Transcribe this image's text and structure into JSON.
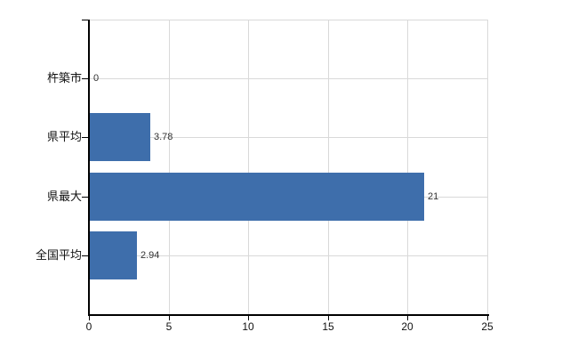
{
  "chart_data": {
    "type": "bar",
    "orientation": "horizontal",
    "title": "",
    "xlabel": "",
    "ylabel": "",
    "categories": [
      "杵築市",
      "県平均",
      "県最大",
      "全国平均"
    ],
    "values": [
      0,
      3.78,
      21,
      2.94
    ],
    "value_labels": [
      "0",
      "3.78",
      "21",
      "2.94"
    ],
    "xlim": [
      0,
      25
    ],
    "x_ticks": [
      0,
      5,
      10,
      15,
      20,
      25
    ],
    "x_tick_labels": [
      "0",
      "5",
      "10",
      "15",
      "20",
      "25"
    ],
    "grid": true,
    "legend": false,
    "colors": {
      "bar": "#3e6eab",
      "grid": "#d9d9d9",
      "axis": "#000000",
      "background": "#ffffff"
    }
  }
}
